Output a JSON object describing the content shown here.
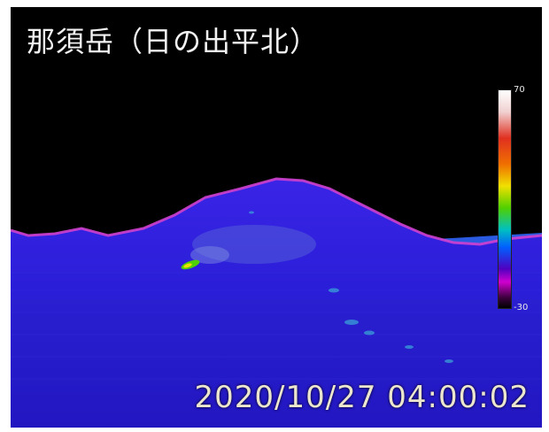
{
  "image": {
    "title": "那須岳（日の出平北）",
    "timestamp": "2020/10/27 04:00:02",
    "colorbar": {
      "max_label": "70",
      "min_label": "-30"
    },
    "colors": {
      "sky": "#000000",
      "mountain": "#2a1ed8",
      "ridge_highlight": "#d040d0",
      "text": "#f2f2f2",
      "timestamp_text": "#ece6cf"
    }
  }
}
